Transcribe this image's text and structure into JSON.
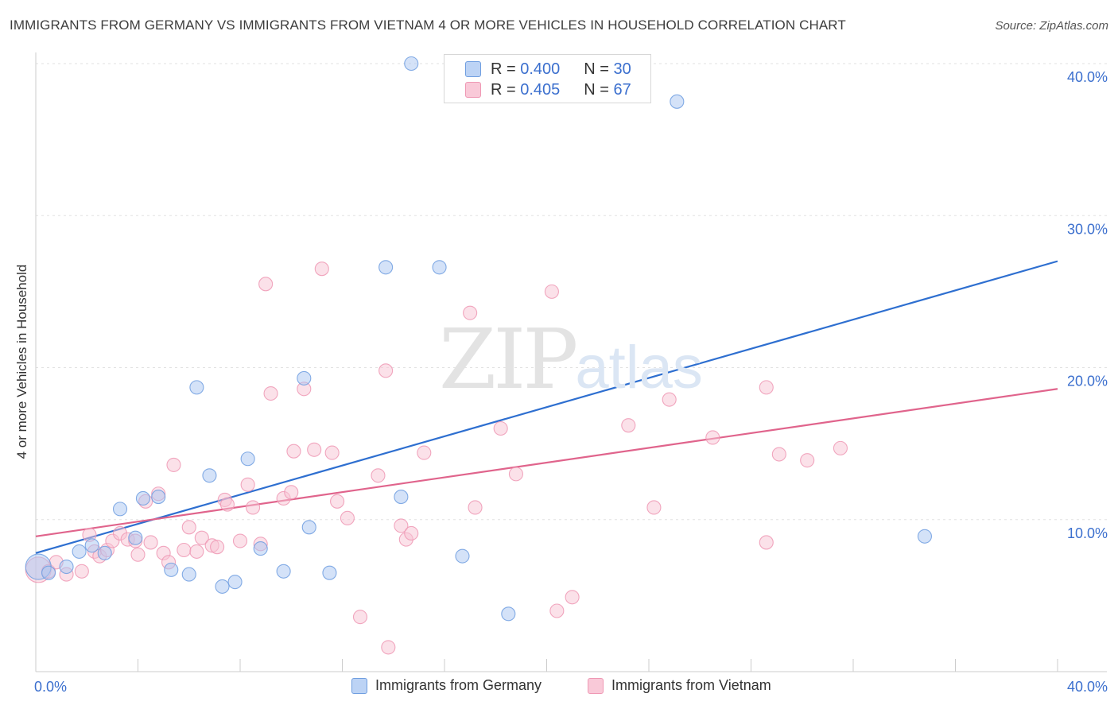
{
  "title": "IMMIGRANTS FROM GERMANY VS IMMIGRANTS FROM VIETNAM 4 OR MORE VEHICLES IN HOUSEHOLD CORRELATION CHART",
  "source": "Source: ZipAtlas.com",
  "watermark": {
    "part1": "ZIP",
    "part2": "atlas"
  },
  "stats": [
    {
      "r_label": "R =",
      "r_value": "0.400",
      "n_label": "N =",
      "n_value": "30"
    },
    {
      "r_label": "R =",
      "r_value": "0.405",
      "n_label": "N =",
      "n_value": "67"
    }
  ],
  "chart_data": {
    "type": "scatter",
    "title": "IMMIGRANTS FROM GERMANY VS IMMIGRANTS FROM VIETNAM 4 OR MORE VEHICLES IN HOUSEHOLD CORRELATION CHART",
    "xlabel": "",
    "ylabel": "4 or more Vehicles in Household",
    "xlim": [
      0,
      40
    ],
    "ylim": [
      0,
      40
    ],
    "x_tick_labels": [
      {
        "value": 0,
        "label": "0.0%"
      },
      {
        "value": 40,
        "label": "40.0%"
      }
    ],
    "y_tick_labels": [
      {
        "value": 10,
        "label": "10.0%"
      },
      {
        "value": 20,
        "label": "20.0%"
      },
      {
        "value": 30,
        "label": "30.0%"
      },
      {
        "value": 40,
        "label": "40.0%"
      }
    ],
    "grid": true,
    "legend_position": "bottom",
    "series": [
      {
        "name": "Immigrants from Germany",
        "color": "#6f9ee0",
        "fill": "#a9c6f2",
        "line_color": "#2e6fd0",
        "trend": {
          "x": [
            0,
            40
          ],
          "y": [
            7.8,
            27.0
          ]
        },
        "points": [
          [
            0.1,
            6.9
          ],
          [
            0.5,
            6.5
          ],
          [
            1.2,
            6.9
          ],
          [
            1.7,
            7.9
          ],
          [
            2.2,
            8.3
          ],
          [
            2.7,
            7.8
          ],
          [
            3.3,
            10.7
          ],
          [
            3.9,
            8.8
          ],
          [
            4.2,
            11.4
          ],
          [
            4.8,
            11.5
          ],
          [
            5.3,
            6.7
          ],
          [
            6.0,
            6.4
          ],
          [
            6.3,
            18.7
          ],
          [
            6.8,
            12.9
          ],
          [
            7.3,
            5.6
          ],
          [
            7.8,
            5.9
          ],
          [
            8.3,
            14.0
          ],
          [
            8.8,
            8.1
          ],
          [
            9.7,
            6.6
          ],
          [
            10.5,
            19.3
          ],
          [
            10.7,
            9.5
          ],
          [
            11.5,
            6.5
          ],
          [
            13.7,
            26.6
          ],
          [
            14.3,
            11.5
          ],
          [
            14.7,
            40.0
          ],
          [
            15.8,
            26.6
          ],
          [
            16.7,
            7.6
          ],
          [
            18.5,
            3.8
          ],
          [
            25.1,
            37.5
          ],
          [
            34.8,
            8.9
          ]
        ]
      },
      {
        "name": "Immigrants from Vietnam",
        "color": "#ef98b4",
        "fill": "#f8c4d4",
        "line_color": "#e0648c",
        "trend": {
          "x": [
            0,
            40
          ],
          "y": [
            8.9,
            18.6
          ]
        },
        "points": [
          [
            0.1,
            6.7
          ],
          [
            0.5,
            6.6
          ],
          [
            0.8,
            7.2
          ],
          [
            1.2,
            6.4
          ],
          [
            1.8,
            6.6
          ],
          [
            2.1,
            9.0
          ],
          [
            2.3,
            7.9
          ],
          [
            2.5,
            7.6
          ],
          [
            2.8,
            8.0
          ],
          [
            3.0,
            8.6
          ],
          [
            3.3,
            9.1
          ],
          [
            3.6,
            8.7
          ],
          [
            3.9,
            8.6
          ],
          [
            4.0,
            7.7
          ],
          [
            4.3,
            11.2
          ],
          [
            4.5,
            8.5
          ],
          [
            4.8,
            11.7
          ],
          [
            5.0,
            7.8
          ],
          [
            5.2,
            7.2
          ],
          [
            5.4,
            13.6
          ],
          [
            5.8,
            8.0
          ],
          [
            6.0,
            9.5
          ],
          [
            6.3,
            7.9
          ],
          [
            6.5,
            8.8
          ],
          [
            6.9,
            8.3
          ],
          [
            7.1,
            8.2
          ],
          [
            7.4,
            11.3
          ],
          [
            7.5,
            11.0
          ],
          [
            8.0,
            8.6
          ],
          [
            8.3,
            12.3
          ],
          [
            8.5,
            10.8
          ],
          [
            8.8,
            8.4
          ],
          [
            9.0,
            25.5
          ],
          [
            9.2,
            18.3
          ],
          [
            9.7,
            11.4
          ],
          [
            10.0,
            11.8
          ],
          [
            10.1,
            14.5
          ],
          [
            10.5,
            18.6
          ],
          [
            10.9,
            14.6
          ],
          [
            11.2,
            26.5
          ],
          [
            11.6,
            14.4
          ],
          [
            11.8,
            11.2
          ],
          [
            12.2,
            10.1
          ],
          [
            12.7,
            3.6
          ],
          [
            13.4,
            12.9
          ],
          [
            13.7,
            19.8
          ],
          [
            13.8,
            1.6
          ],
          [
            14.3,
            9.6
          ],
          [
            14.5,
            8.7
          ],
          [
            14.7,
            9.1
          ],
          [
            15.2,
            14.4
          ],
          [
            17.0,
            23.6
          ],
          [
            17.2,
            10.8
          ],
          [
            18.2,
            16.0
          ],
          [
            18.8,
            13.0
          ],
          [
            20.2,
            25.0
          ],
          [
            20.4,
            4.0
          ],
          [
            21.0,
            4.9
          ],
          [
            23.2,
            16.2
          ],
          [
            24.2,
            10.8
          ],
          [
            24.8,
            17.9
          ],
          [
            26.5,
            15.4
          ],
          [
            28.6,
            8.5
          ],
          [
            28.6,
            18.7
          ],
          [
            29.1,
            14.3
          ],
          [
            30.2,
            13.9
          ],
          [
            31.5,
            14.7
          ]
        ]
      }
    ]
  }
}
